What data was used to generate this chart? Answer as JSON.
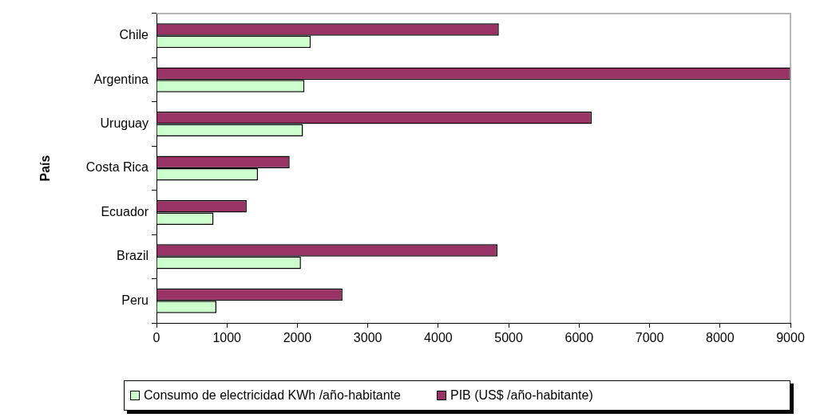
{
  "chart_data": {
    "type": "bar",
    "orientation": "horizontal",
    "ylabel": "País",
    "categories": [
      "Chile",
      "Argentina",
      "Uruguay",
      "Costa Rica",
      "Ecuador",
      "Brazil",
      "Peru"
    ],
    "series": [
      {
        "name": "Consumo de electricidad KWh /año-habitante",
        "color": "#ccffcc",
        "values": [
          2190,
          2100,
          2080,
          1440,
          810,
          2050,
          850
        ]
      },
      {
        "name": "PIB (US$ /año-habitante)",
        "color": "#993366",
        "values": [
          4860,
          9000,
          6180,
          1890,
          1280,
          4840,
          2640
        ]
      }
    ],
    "xlim": [
      0,
      9000
    ],
    "xticks": [
      0,
      1000,
      2000,
      3000,
      4000,
      5000,
      6000,
      7000,
      8000,
      9000
    ],
    "legend": "bottom"
  }
}
